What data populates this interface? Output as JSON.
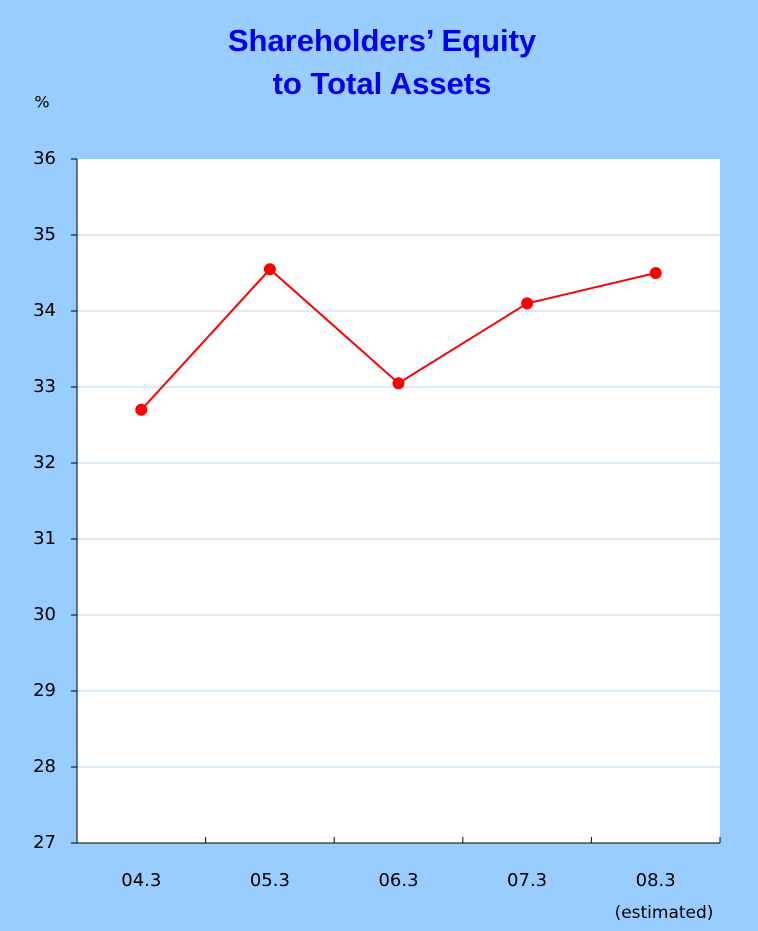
{
  "chart_data": {
    "type": "line",
    "title": [
      "Shareholders’ Equity",
      "to Total Assets"
    ],
    "y_label": "%",
    "annotation": "(estimated)",
    "categories": [
      "04.3",
      "05.3",
      "06.3",
      "07.3",
      "08.3"
    ],
    "series": [
      {
        "name": "Shareholders’ Equity to Total Assets",
        "color": "#ff0000",
        "values": [
          32.7,
          34.55,
          33.05,
          34.1,
          34.5
        ]
      }
    ],
    "ylim": [
      27,
      36
    ],
    "yticks": [
      27,
      28,
      29,
      30,
      31,
      32,
      33,
      34,
      35,
      36
    ],
    "grid": true
  }
}
